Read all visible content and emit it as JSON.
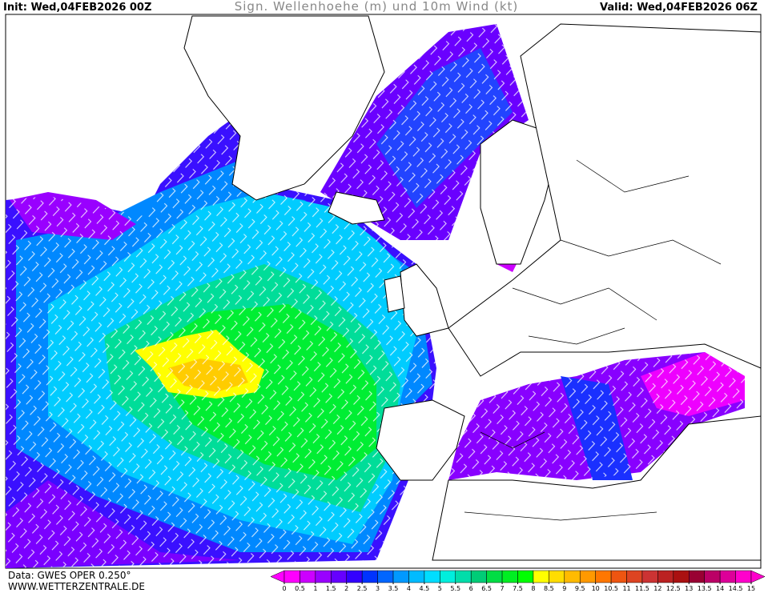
{
  "header": {
    "init": "Init: Wed,04FEB2026 00Z",
    "title": "Sign. Wellenhoehe (m) und 10m Wind (kt)",
    "valid": "Valid: Wed,04FEB2026 06Z"
  },
  "footer": {
    "data": "Data: GWES OPER 0.250°",
    "site": "WWW.WETTERZENTRALE.DE"
  },
  "legend": {
    "ticks": [
      0,
      0.5,
      1,
      1.5,
      2,
      2.5,
      3,
      3.5,
      4,
      4.5,
      5,
      5.5,
      6,
      6.5,
      7,
      7.5,
      8,
      8.5,
      9,
      9.5,
      10,
      10.5,
      11,
      11.5,
      12,
      12.5,
      13,
      13.5,
      14,
      14.5,
      15
    ],
    "colors": [
      "#ff00ff",
      "#cc00ff",
      "#9900ff",
      "#6600ff",
      "#3300ff",
      "#0033ff",
      "#0066ff",
      "#0099ff",
      "#00bbff",
      "#00ddff",
      "#00eedd",
      "#00ddaa",
      "#00cc77",
      "#00dd44",
      "#00ee22",
      "#00ff00",
      "#ffff00",
      "#ffdd00",
      "#ffbb00",
      "#ff9900",
      "#ff7700",
      "#ee5511",
      "#dd4422",
      "#cc3333",
      "#bb2222",
      "#aa1111",
      "#990033",
      "#bb0066",
      "#dd0099",
      "#ff00cc"
    ]
  }
}
